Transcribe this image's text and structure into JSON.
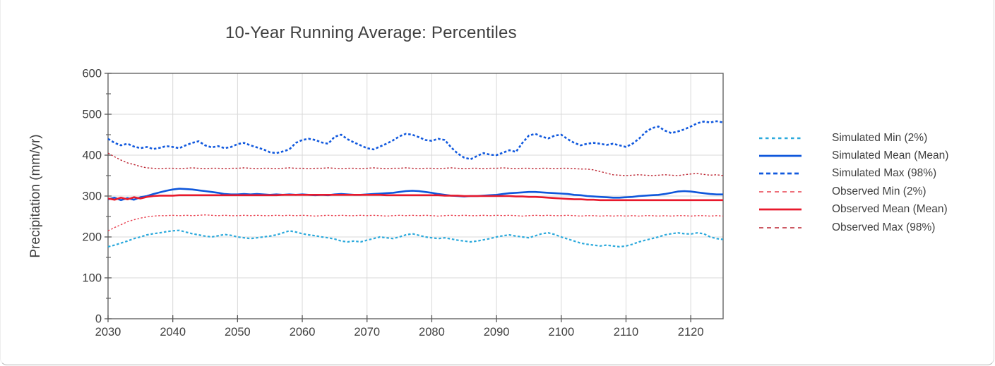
{
  "chart": {
    "title": "10-Year Running Average: Percentiles",
    "ylabel": "Precipitation (mm/yr)"
  },
  "legend": {
    "items": [
      {
        "label": "Simulated Min (2%)"
      },
      {
        "label": "Simulated Mean (Mean)"
      },
      {
        "label": "Simulated Max (98%)"
      },
      {
        "label": "Observed Min (2%)"
      },
      {
        "label": "Observed Mean (Mean)"
      },
      {
        "label": "Observed Max (98%)"
      }
    ]
  },
  "chart_data": {
    "type": "line",
    "title": "10-Year Running Average: Percentiles",
    "xlabel": "",
    "ylabel": "Precipitation (mm/yr)",
    "xlim": [
      2030,
      2125
    ],
    "ylim": [
      0,
      600
    ],
    "x_ticks": [
      2030,
      2040,
      2050,
      2060,
      2070,
      2080,
      2090,
      2100,
      2110,
      2120
    ],
    "y_ticks": [
      0,
      100,
      200,
      300,
      400,
      500,
      600
    ],
    "y_minor_ticks": [
      50,
      150,
      250,
      350,
      450,
      550
    ],
    "grid": true,
    "legend_position": "right",
    "axis_color": "#595959",
    "grid_color": "#d9d9d9",
    "tick_label_color": "#3f3f3f",
    "x_start": 2030,
    "x_step": 1,
    "series": [
      {
        "name": "Simulated Min (2%)",
        "color": "#2ba9dc",
        "width": 2.2,
        "dash": "3.5 2.8",
        "legend_dash": "4.5 4.5",
        "values": [
          176,
          180,
          185,
          190,
          196,
          200,
          205,
          208,
          210,
          213,
          215,
          216,
          212,
          208,
          205,
          202,
          200,
          203,
          206,
          204,
          200,
          198,
          196,
          198,
          200,
          202,
          205,
          210,
          215,
          212,
          208,
          205,
          203,
          200,
          198,
          195,
          190,
          188,
          190,
          188,
          192,
          196,
          200,
          198,
          196,
          200,
          205,
          208,
          204,
          200,
          198,
          196,
          198,
          195,
          192,
          190,
          188,
          190,
          193,
          196,
          200,
          203,
          205,
          202,
          200,
          198,
          203,
          208,
          210,
          206,
          200,
          195,
          190,
          185,
          182,
          180,
          178,
          180,
          178,
          176,
          178,
          182,
          188,
          192,
          196,
          200,
          205,
          208,
          210,
          208,
          207,
          210,
          208,
          200,
          196,
          194
        ]
      },
      {
        "name": "Simulated Mean (Mean)",
        "color": "#0f57db",
        "width": 2.6,
        "dash": "solid",
        "legend_dash": "solid",
        "values": [
          292,
          296,
          290,
          295,
          291,
          297,
          300,
          305,
          309,
          313,
          316,
          318,
          317,
          316,
          314,
          312,
          310,
          308,
          305,
          304,
          304,
          305,
          304,
          305,
          304,
          303,
          304,
          303,
          304,
          303,
          304,
          303,
          302,
          303,
          302,
          304,
          305,
          304,
          303,
          303,
          304,
          305,
          306,
          307,
          308,
          310,
          312,
          313,
          312,
          310,
          308,
          305,
          303,
          301,
          300,
          299,
          300,
          300,
          301,
          302,
          303,
          305,
          307,
          308,
          309,
          310,
          310,
          309,
          308,
          307,
          306,
          305,
          303,
          302,
          300,
          299,
          298,
          297,
          296,
          296,
          297,
          298,
          300,
          301,
          302,
          303,
          305,
          308,
          311,
          312,
          311,
          309,
          307,
          305,
          304,
          304
        ]
      },
      {
        "name": "Simulated Max (98%)",
        "color": "#1159de",
        "width": 2.6,
        "dash": "3.5 2.8",
        "legend_dash": "6 4",
        "values": [
          440,
          430,
          424,
          428,
          421,
          417,
          420,
          415,
          418,
          422,
          420,
          417,
          424,
          430,
          434,
          424,
          419,
          422,
          417,
          420,
          427,
          430,
          424,
          419,
          414,
          407,
          405,
          409,
          414,
          430,
          437,
          440,
          437,
          431,
          428,
          445,
          450,
          439,
          431,
          424,
          417,
          414,
          421,
          428,
          436,
          446,
          452,
          450,
          444,
          437,
          435,
          440,
          437,
          419,
          404,
          394,
          390,
          398,
          405,
          401,
          400,
          406,
          412,
          408,
          430,
          448,
          452,
          445,
          441,
          448,
          450,
          439,
          430,
          424,
          428,
          430,
          428,
          425,
          428,
          424,
          420,
          428,
          440,
          456,
          466,
          470,
          460,
          454,
          458,
          463,
          470,
          478,
          482,
          480,
          483,
          480
        ]
      },
      {
        "name": "Observed Min (2%)",
        "color": "#e9404f",
        "width": 1.4,
        "dash": "2.5 2.5",
        "legend_dash": "6 5",
        "values": [
          215,
          223,
          230,
          237,
          242,
          246,
          249,
          251,
          252,
          252,
          253,
          252,
          253,
          252,
          253,
          254,
          253,
          252,
          253,
          252,
          252,
          253,
          252,
          253,
          252,
          252,
          253,
          252,
          253,
          252,
          253,
          252,
          251,
          252,
          253,
          252,
          253,
          252,
          252,
          253,
          252,
          253,
          252,
          251,
          252,
          253,
          252,
          253,
          252,
          253,
          252,
          251,
          252,
          253,
          252,
          253,
          252,
          252,
          253,
          252,
          253,
          252,
          253,
          252,
          251,
          252,
          253,
          252,
          253,
          252,
          252,
          253,
          252,
          251,
          252,
          252,
          251,
          252,
          251,
          252,
          251,
          252,
          251,
          252,
          252,
          251,
          252,
          251,
          252,
          252,
          251,
          252,
          252,
          251,
          252,
          251
        ]
      },
      {
        "name": "Observed Mean (Mean)",
        "color": "#e8192c",
        "width": 2.6,
        "dash": "solid",
        "legend_dash": "solid",
        "values": [
          294,
          291,
          296,
          292,
          297,
          294,
          298,
          300,
          301,
          301,
          301,
          302,
          302,
          302,
          302,
          302,
          302,
          302,
          302,
          302,
          302,
          302,
          302,
          302,
          302,
          302,
          302,
          303,
          303,
          303,
          303,
          303,
          303,
          303,
          303,
          303,
          303,
          303,
          303,
          303,
          303,
          303,
          303,
          302,
          302,
          302,
          302,
          302,
          302,
          302,
          302,
          302,
          301,
          301,
          301,
          300,
          300,
          300,
          300,
          300,
          300,
          300,
          300,
          299,
          299,
          298,
          298,
          297,
          296,
          295,
          294,
          293,
          292,
          292,
          291,
          291,
          290,
          290,
          290,
          290,
          290,
          290,
          290,
          290,
          290,
          290,
          290,
          290,
          290,
          290,
          290,
          290,
          290,
          290,
          290,
          290
        ]
      },
      {
        "name": "Observed Max (98%)",
        "color": "#bc2431",
        "width": 1.4,
        "dash": "2.5 2.5",
        "legend_dash": "6 5",
        "values": [
          405,
          396,
          388,
          381,
          377,
          372,
          369,
          368,
          367,
          368,
          368,
          367,
          368,
          369,
          368,
          367,
          368,
          368,
          367,
          368,
          368,
          369,
          368,
          367,
          368,
          368,
          367,
          368,
          369,
          368,
          368,
          367,
          368,
          368,
          369,
          368,
          367,
          368,
          368,
          367,
          368,
          369,
          368,
          367,
          368,
          368,
          369,
          368,
          367,
          368,
          368,
          367,
          368,
          369,
          368,
          367,
          368,
          368,
          367,
          368,
          368,
          369,
          368,
          367,
          368,
          368,
          367,
          368,
          368,
          367,
          368,
          368,
          367,
          366,
          366,
          364,
          360,
          356,
          352,
          351,
          350,
          351,
          352,
          351,
          350,
          351,
          352,
          351,
          350,
          352,
          354,
          355,
          353,
          351,
          352,
          350
        ]
      }
    ]
  }
}
